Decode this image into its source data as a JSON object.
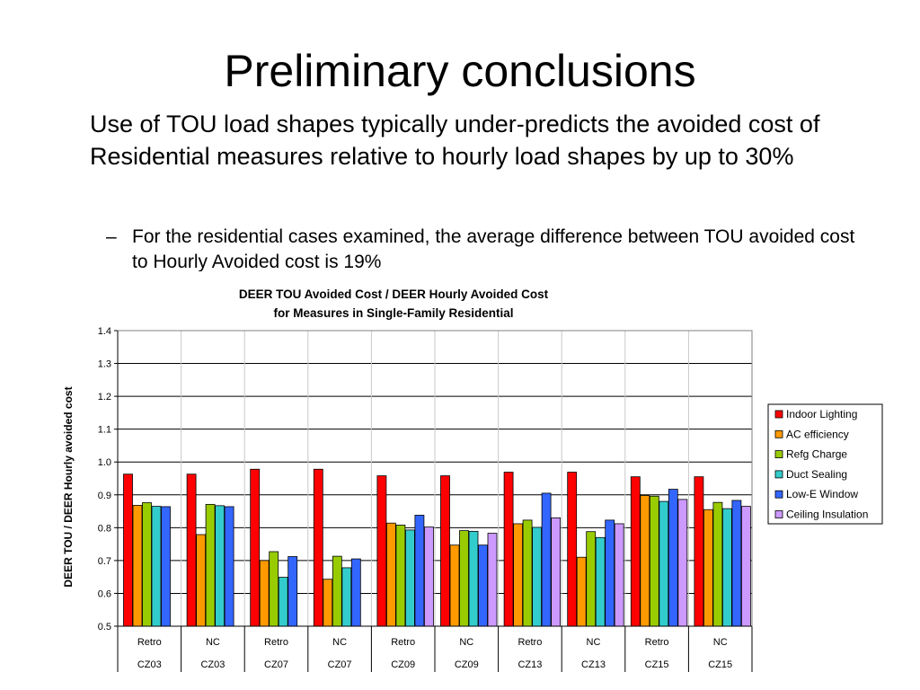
{
  "slide": {
    "title": "Preliminary conclusions",
    "bullet": "Use of TOU load shapes typically under-predicts the avoided cost of Residential measures relative to hourly load shapes by up to 30%",
    "sub_dash": "–",
    "sub_bullet": "For the residential cases examined, the average difference between TOU avoided cost to Hourly Avoided cost is 19%"
  },
  "chart_data": {
    "type": "bar",
    "title": "DEER TOU Avoided Cost / DEER Hourly Avoided Cost",
    "subtitle": "for Measures in Single-Family Residential",
    "ylabel": "DEER TOU / DEER Hourly avoided cost",
    "ylim": [
      0.5,
      1.4
    ],
    "yticks": [
      "0.5",
      "0.6",
      "0.7",
      "0.8",
      "0.9",
      "1.0",
      "1.1",
      "1.2",
      "1.3",
      "1.4"
    ],
    "categories": [
      "Retro",
      "NC",
      "Retro",
      "NC",
      "Retro",
      "NC",
      "Retro",
      "NC",
      "Retro",
      "NC"
    ],
    "groups": [
      "CZ03",
      "CZ03",
      "CZ07",
      "CZ07",
      "CZ09",
      "CZ09",
      "CZ13",
      "CZ13",
      "CZ15",
      "CZ15"
    ],
    "grid": true,
    "legend_position": "right",
    "series": [
      {
        "name": "Indoor Lighting",
        "color": "#ff0000",
        "values": [
          0.963,
          0.963,
          0.978,
          0.978,
          0.958,
          0.958,
          0.969,
          0.969,
          0.955,
          0.955
        ]
      },
      {
        "name": "AC efficiency",
        "color": "#ff9900",
        "values": [
          0.868,
          0.779,
          0.7,
          0.643,
          0.814,
          0.747,
          0.812,
          0.71,
          0.898,
          0.855
        ]
      },
      {
        "name": "Refg Charge",
        "color": "#99cc00",
        "values": [
          0.876,
          0.871,
          0.727,
          0.713,
          0.808,
          0.791,
          0.823,
          0.788,
          0.896,
          0.877
        ]
      },
      {
        "name": "Duct Sealing",
        "color": "#33cccc",
        "values": [
          0.865,
          0.867,
          0.649,
          0.678,
          0.793,
          0.789,
          0.801,
          0.77,
          0.88,
          0.858
        ]
      },
      {
        "name": "Low-E Window",
        "color": "#3366ff",
        "values": [
          0.864,
          0.864,
          0.712,
          0.705,
          0.838,
          0.747,
          0.905,
          0.823,
          0.917,
          0.883
        ]
      },
      {
        "name": "Ceiling Insulation",
        "color": "#cc99ff",
        "values": [
          null,
          null,
          null,
          null,
          0.802,
          0.783,
          0.83,
          0.812,
          0.886,
          0.865
        ]
      }
    ]
  }
}
